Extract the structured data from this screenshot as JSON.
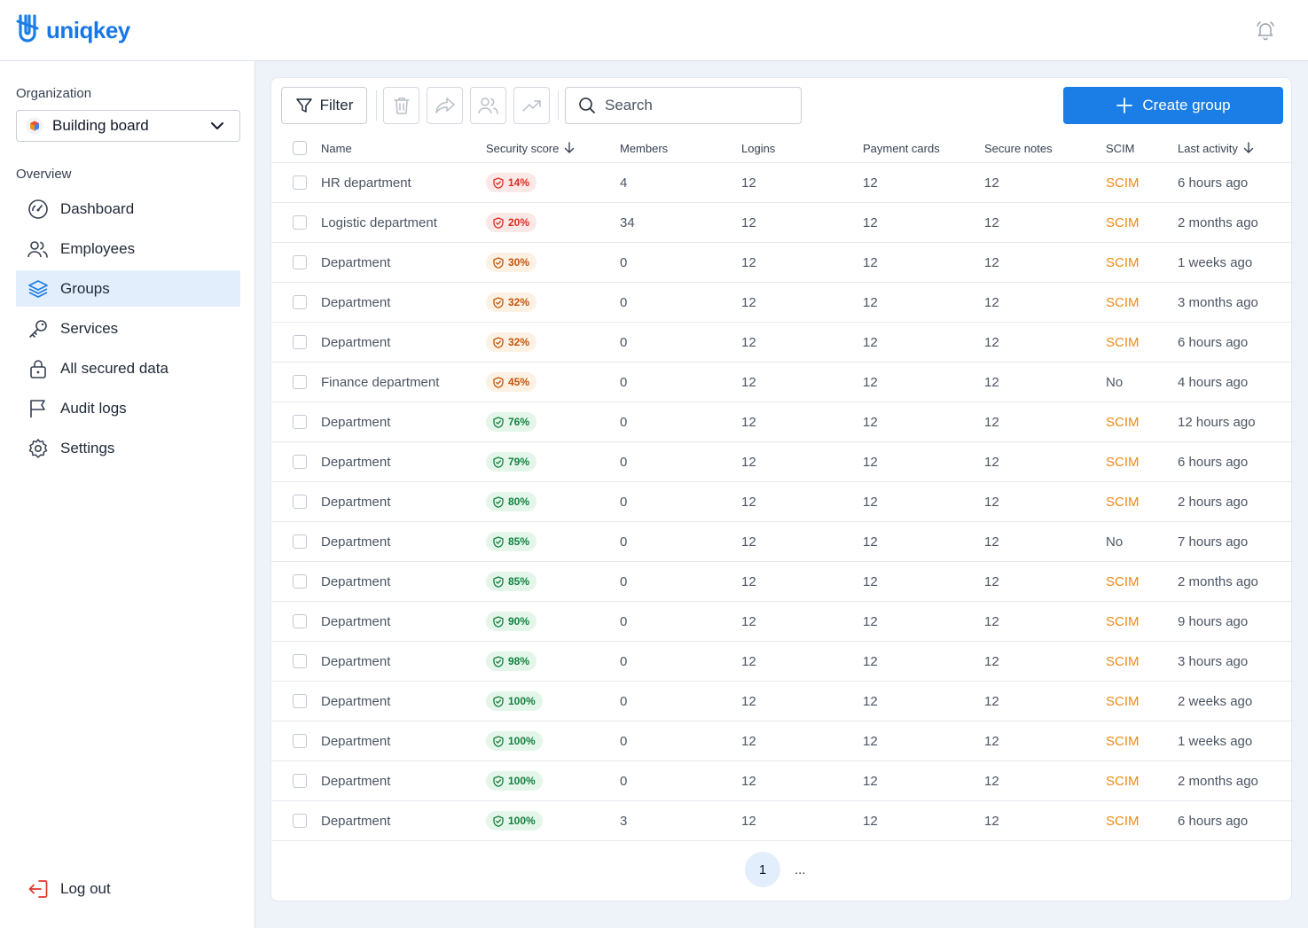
{
  "app": {
    "logo_text": "uniqkey",
    "brand_color": "#1a7ee6"
  },
  "sidebar": {
    "organization_label": "Organization",
    "organization_value": "Building board",
    "overview_label": "Overview",
    "items": [
      {
        "label": "Dashboard",
        "icon": "dashboard-gauge-icon",
        "active": false
      },
      {
        "label": "Employees",
        "icon": "users-icon",
        "active": false
      },
      {
        "label": "Groups",
        "icon": "layers-icon",
        "active": true
      },
      {
        "label": "Services",
        "icon": "key-icon",
        "active": false
      },
      {
        "label": "All secured data",
        "icon": "lock-icon",
        "active": false
      },
      {
        "label": "Audit logs",
        "icon": "flag-icon",
        "active": false
      },
      {
        "label": "Settings",
        "icon": "gear-icon",
        "active": false
      }
    ],
    "logout_label": "Log out"
  },
  "toolbar": {
    "filter_label": "Filter",
    "search_placeholder": "Search",
    "create_label": "Create group"
  },
  "table": {
    "columns": [
      "Name",
      "Security score",
      "Members",
      "Logins",
      "Payment cards",
      "Secure notes",
      "SCIM",
      "Last activity"
    ],
    "rows": [
      {
        "name": "HR department",
        "score": "14%",
        "level": "red",
        "members": "4",
        "logins": "12",
        "cards": "12",
        "notes": "12",
        "scim": "SCIM",
        "last": "6 hours ago"
      },
      {
        "name": "Logistic department",
        "score": "20%",
        "level": "red",
        "members": "34",
        "logins": "12",
        "cards": "12",
        "notes": "12",
        "scim": "SCIM",
        "last": "2 months ago"
      },
      {
        "name": "Department",
        "score": "30%",
        "level": "orange",
        "members": "0",
        "logins": "12",
        "cards": "12",
        "notes": "12",
        "scim": "SCIM",
        "last": "1 weeks ago"
      },
      {
        "name": "Department",
        "score": "32%",
        "level": "orange",
        "members": "0",
        "logins": "12",
        "cards": "12",
        "notes": "12",
        "scim": "SCIM",
        "last": "3 months ago"
      },
      {
        "name": "Department",
        "score": "32%",
        "level": "orange",
        "members": "0",
        "logins": "12",
        "cards": "12",
        "notes": "12",
        "scim": "SCIM",
        "last": "6 hours ago"
      },
      {
        "name": "Finance department",
        "score": "45%",
        "level": "orange",
        "members": "0",
        "logins": "12",
        "cards": "12",
        "notes": "12",
        "scim": "No",
        "last": "4 hours ago"
      },
      {
        "name": "Department",
        "score": "76%",
        "level": "green",
        "members": "0",
        "logins": "12",
        "cards": "12",
        "notes": "12",
        "scim": "SCIM",
        "last": "12 hours ago"
      },
      {
        "name": "Department",
        "score": "79%",
        "level": "green",
        "members": "0",
        "logins": "12",
        "cards": "12",
        "notes": "12",
        "scim": "SCIM",
        "last": "6 hours ago"
      },
      {
        "name": "Department",
        "score": "80%",
        "level": "green",
        "members": "0",
        "logins": "12",
        "cards": "12",
        "notes": "12",
        "scim": "SCIM",
        "last": "2 hours ago"
      },
      {
        "name": "Department",
        "score": "85%",
        "level": "green",
        "members": "0",
        "logins": "12",
        "cards": "12",
        "notes": "12",
        "scim": "No",
        "last": "7 hours ago"
      },
      {
        "name": "Department",
        "score": "85%",
        "level": "green",
        "members": "0",
        "logins": "12",
        "cards": "12",
        "notes": "12",
        "scim": "SCIM",
        "last": "2 months ago"
      },
      {
        "name": "Department",
        "score": "90%",
        "level": "green",
        "members": "0",
        "logins": "12",
        "cards": "12",
        "notes": "12",
        "scim": "SCIM",
        "last": "9 hours ago"
      },
      {
        "name": "Department",
        "score": "98%",
        "level": "green",
        "members": "0",
        "logins": "12",
        "cards": "12",
        "notes": "12",
        "scim": "SCIM",
        "last": "3 hours ago"
      },
      {
        "name": "Department",
        "score": "100%",
        "level": "green",
        "members": "0",
        "logins": "12",
        "cards": "12",
        "notes": "12",
        "scim": "SCIM",
        "last": "2 weeks ago"
      },
      {
        "name": "Department",
        "score": "100%",
        "level": "green",
        "members": "0",
        "logins": "12",
        "cards": "12",
        "notes": "12",
        "scim": "SCIM",
        "last": "1 weeks ago"
      },
      {
        "name": "Department",
        "score": "100%",
        "level": "green",
        "members": "0",
        "logins": "12",
        "cards": "12",
        "notes": "12",
        "scim": "SCIM",
        "last": "2 months ago"
      },
      {
        "name": "Department",
        "score": "100%",
        "level": "green",
        "members": "3",
        "logins": "12",
        "cards": "12",
        "notes": "12",
        "scim": "SCIM",
        "last": "6 hours ago"
      }
    ]
  },
  "pagination": {
    "current": "1",
    "more": "..."
  }
}
